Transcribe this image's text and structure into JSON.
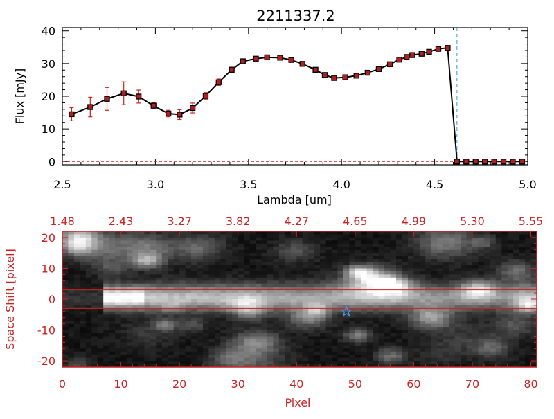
{
  "chart_data": [
    {
      "type": "line",
      "title": "2211337.2",
      "xlabel": "Lambda [um]",
      "ylabel": "Flux [mJy]",
      "xlim": [
        2.5,
        5.0
      ],
      "ylim": [
        -1,
        41
      ],
      "xticks": [
        "2.5",
        "3.0",
        "3.5",
        "4.0",
        "4.5",
        "5.0"
      ],
      "yticks": [
        "0",
        "10",
        "20",
        "30",
        "40"
      ],
      "series": [
        {
          "x": [
            2.55,
            2.65,
            2.74,
            2.83,
            2.91,
            2.99,
            3.07,
            3.13,
            3.2,
            3.27,
            3.34,
            3.41,
            3.47,
            3.54,
            3.6,
            3.67,
            3.73,
            3.79,
            3.86,
            3.91,
            3.96,
            4.02,
            4.08,
            4.14,
            4.2,
            4.26,
            4.31,
            4.35,
            4.38,
            4.43,
            4.47,
            4.52,
            4.57,
            4.62,
            4.67,
            4.72,
            4.77,
            4.82,
            4.87,
            4.92,
            4.97
          ],
          "y": [
            14.5,
            16.7,
            19.2,
            20.9,
            19.9,
            17.1,
            14.7,
            14.4,
            16.4,
            20.1,
            24.3,
            28.1,
            30.7,
            31.5,
            31.9,
            31.8,
            31.1,
            29.9,
            28.1,
            26.5,
            25.6,
            25.8,
            26.3,
            27.2,
            28.3,
            29.8,
            31.2,
            32.0,
            32.6,
            33.0,
            33.6,
            34.5,
            34.8,
            0,
            0,
            0,
            0,
            0,
            0,
            0,
            0
          ],
          "yerr": [
            2.0,
            3.0,
            3.5,
            3.5,
            2.0,
            1.0,
            1.0,
            1.5,
            1.5,
            1.0,
            1.0,
            0.8,
            0.6,
            0.5,
            0.5,
            0.5,
            0.5,
            0.5,
            0.5,
            0.5,
            0.5,
            0.5,
            0.5,
            0.5,
            0.5,
            0.5,
            0.5,
            0.5,
            0.5,
            0.5,
            0.5,
            0.5,
            0.5,
            0,
            0,
            0,
            0,
            0,
            0,
            0,
            0
          ],
          "line_color": "#000000",
          "marker_color": "#b02020",
          "errorbar_color": "#cc2222"
        }
      ],
      "vline": {
        "x": 4.62,
        "color": "#3399dd",
        "style": "dashed"
      },
      "hline": {
        "y": 0,
        "color": "#cc2222",
        "style": "dashed"
      }
    },
    {
      "type": "heatmap",
      "xlabel": "Pixel",
      "ylabel": "Space Shift [pixel]",
      "xlim": [
        0,
        81
      ],
      "ylim": [
        -22,
        22
      ],
      "xticks": [
        "0",
        "10",
        "20",
        "30",
        "40",
        "50",
        "60",
        "70",
        "80"
      ],
      "yticks": [
        "-20",
        "-10",
        "0",
        "10",
        "20"
      ],
      "top_ticks": [
        "1.48",
        "2.43",
        "3.27",
        "3.82",
        "4.27",
        "4.65",
        "4.99",
        "5.30",
        "5.55"
      ],
      "colormap": "grayscale",
      "axis_color": "#cc2222",
      "hlines": [
        {
          "y": 3
        },
        {
          "y": -3
        }
      ],
      "marker": {
        "type": "star",
        "x": 48.5,
        "y": -4,
        "color": "#4499ee"
      }
    }
  ]
}
